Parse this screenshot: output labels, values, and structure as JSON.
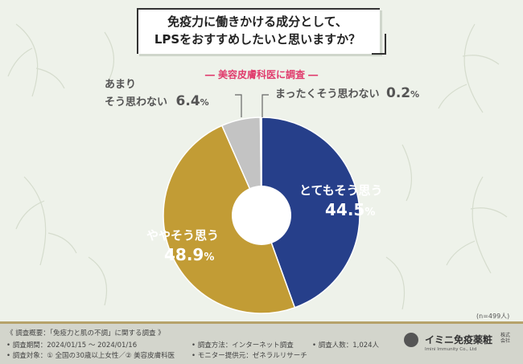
{
  "chart_data": {
    "type": "pie",
    "title_lines": [
      "免疫力に働きかける成分として、",
      "LPSをおすすめしたいと思いますか？"
    ],
    "subtitle": "― 美容皮膚科医に調査 ―",
    "n_label": "(n=499人)",
    "slices": [
      {
        "label": "とてもそう思う",
        "value": 44.5,
        "color": "#263f8a"
      },
      {
        "label": "ややそう思う",
        "value": 48.9,
        "color": "#c29c35"
      },
      {
        "label": "あまりそう思わない",
        "value": 6.4,
        "color": "#c3c3c3"
      },
      {
        "label": "まったくそう思わない",
        "value": 0.2,
        "color": "#6f6f6f"
      }
    ]
  },
  "labels": {
    "totemo": {
      "text": "とてもそう思う",
      "num": "44.5",
      "sym": "%"
    },
    "yaya": {
      "text": "ややそう思う",
      "num": "48.9",
      "sym": "%"
    },
    "amari_1": "あまり",
    "amari_2": "そう思わない",
    "amari": {
      "num": "6.4",
      "sym": "%"
    },
    "mattaku": {
      "text": "まったくそう思わない",
      "num": "0.2",
      "sym": "%"
    }
  },
  "footer": {
    "overview": "《 調査概要：「免疫力と肌の不調」に関する調査 》",
    "period": "• 調査期間：2024/01/15 ～ 2024/01/16",
    "target": "• 調査対象：① 全国の30歳以上女性／② 美容皮膚科医",
    "method": "• 調査方法：インターネット調査",
    "provider": "• モニター提供元：ゼネラルリサーチ",
    "count": "• 調査人数：1,024人"
  },
  "logo": {
    "name": "イミニ免疫薬粧",
    "kk": "株式会社",
    "en": "Imini Immunity Co., Ltd"
  }
}
